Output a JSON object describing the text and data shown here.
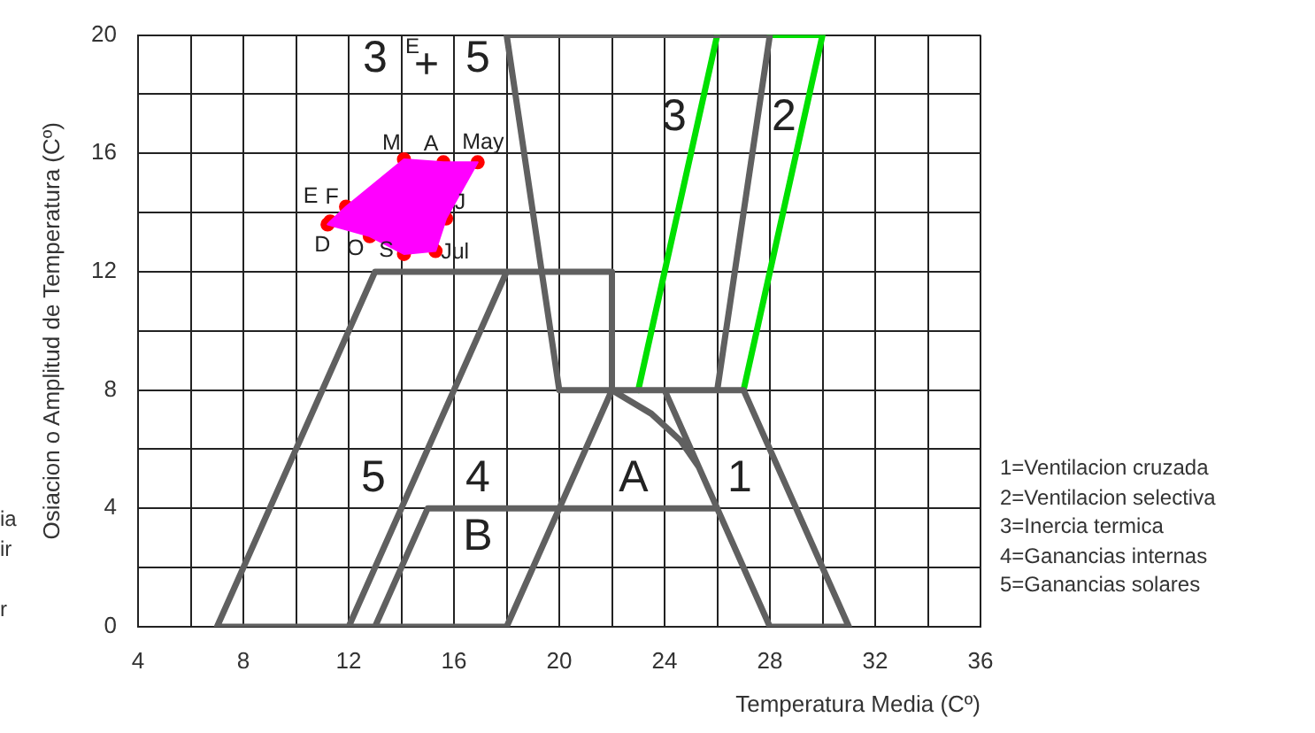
{
  "chart_data": {
    "type": "line",
    "xlabel": "Temperatura Media (Cº)",
    "ylabel": "Osiacion o Amplitud de Temperatura (Cº)",
    "xlim": [
      4,
      36
    ],
    "ylim": [
      0,
      20
    ],
    "xticks": [
      4,
      {
        "value": 6,
        "label": null
      },
      8,
      {
        "value": 10,
        "label": null
      },
      12,
      {
        "value": 14,
        "label": null
      },
      16,
      {
        "value": 18,
        "label": null
      },
      20,
      {
        "value": 22,
        "label": null
      },
      24,
      {
        "value": 26,
        "label": null
      },
      28,
      {
        "value": 30,
        "label": null
      },
      32,
      {
        "value": 34,
        "label": null
      },
      36
    ],
    "yticks": [
      0,
      {
        "value": 2,
        "label": null
      },
      4,
      {
        "value": 6,
        "label": null
      },
      8,
      {
        "value": 10,
        "label": null
      },
      12,
      {
        "value": 14,
        "label": null
      },
      16,
      {
        "value": 18,
        "label": null
      },
      20
    ],
    "grid": true,
    "legend": false,
    "series": [
      {
        "color": "#606060",
        "x": [
          12,
          18,
          22,
          22,
          20,
          18,
          28,
          26,
          27,
          31,
          28,
          24,
          22,
          18,
          7,
          13,
          18,
          null,
          22,
          23.5,
          24.6,
          25.3,
          null,
          24,
          26,
          null,
          13,
          15,
          26
        ],
        "values": [
          0,
          12,
          12,
          8,
          8,
          20,
          20,
          8,
          8,
          0,
          0,
          8,
          8,
          0,
          0,
          12,
          12,
          null,
          8,
          7.2,
          6.3,
          5.4,
          null,
          8,
          8,
          null,
          0,
          4,
          4
        ]
      },
      {
        "color": "#00e000",
        "x": [
          23,
          26,
          null,
          27,
          30,
          28
        ],
        "values": [
          8,
          20,
          null,
          8,
          20,
          20
        ]
      },
      {
        "type": "area",
        "color": "#ff00ff",
        "x": [
          11.3,
          11.9,
          14.1,
          15.6,
          16.9,
          15.7,
          15.3,
          14.1,
          12.8,
          11.2,
          11.3
        ],
        "values": [
          13.7,
          14.2,
          15.8,
          15.7,
          15.7,
          13.8,
          12.7,
          12.6,
          13.2,
          13.6,
          13.7
        ]
      },
      {
        "type": "scatter",
        "color": "#ff0000",
        "marker": "circle",
        "x": [
          11.3,
          11.9,
          14.1,
          15.6,
          16.9,
          15.7,
          15.3,
          14.1,
          12.8,
          11.2
        ],
        "values": [
          13.7,
          14.2,
          15.8,
          15.7,
          15.7,
          13.8,
          12.7,
          12.6,
          13.2,
          13.6
        ],
        "value_labels": [
          "E",
          "F",
          "M",
          "A",
          "May",
          "J",
          "Jul",
          "S",
          "O",
          "D"
        ]
      }
    ],
    "annotations": [
      "3",
      "E",
      "+",
      "5",
      "3",
      "2",
      "5",
      "4",
      "A",
      "1",
      "B",
      "1=Ventilacion cruzada",
      "2=Ventilacion selectiva",
      "3=Inercia termica",
      "4=Ganancias internas",
      "5=Ganancias solares",
      "ia",
      "ir",
      "r"
    ]
  }
}
